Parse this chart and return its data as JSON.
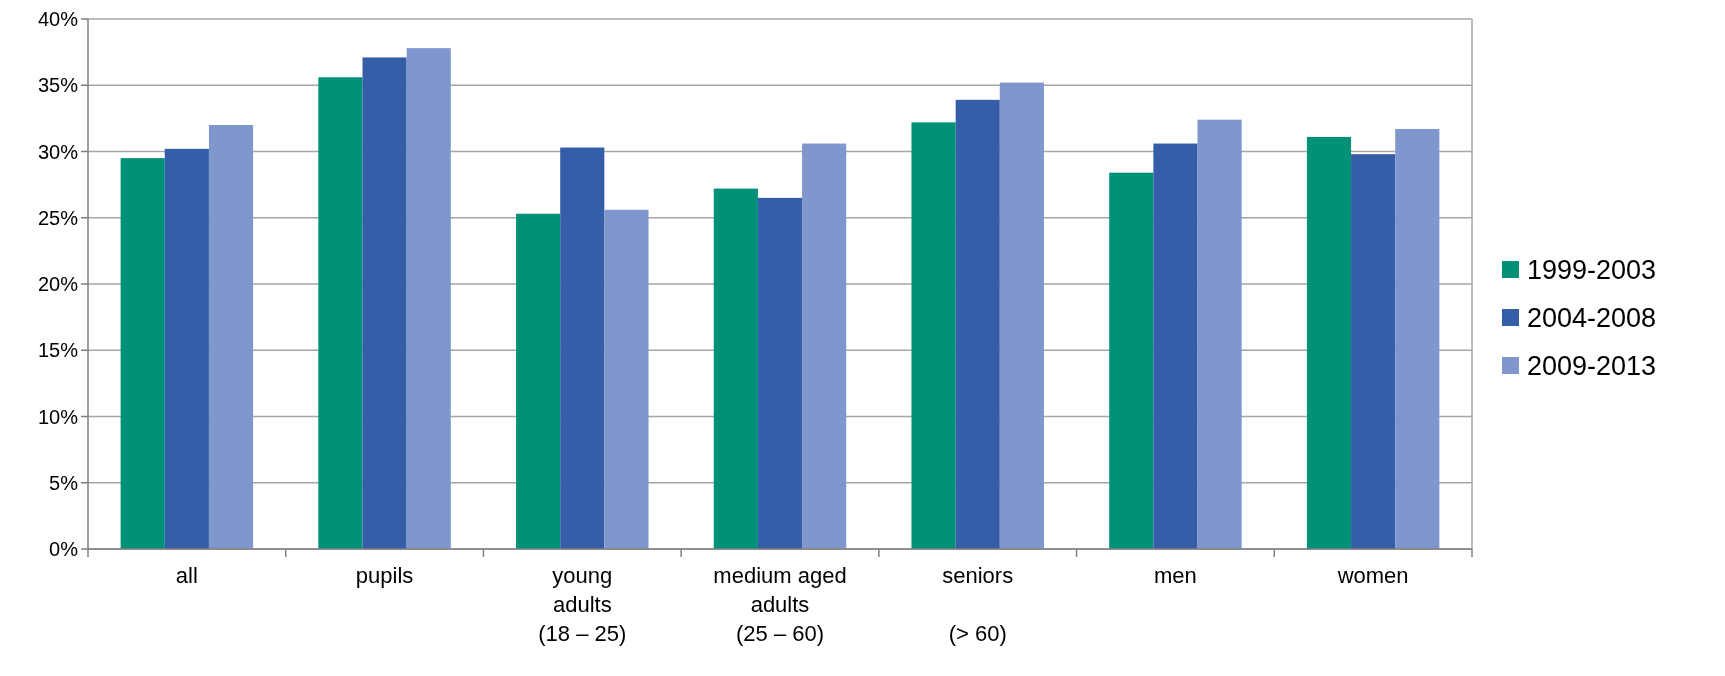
{
  "chart_data": {
    "type": "bar",
    "categories": [
      "all",
      "pupils",
      "young\nadults\n(18 – 25)",
      "medium aged\nadults\n(25 – 60)",
      "seniors\n\n(> 60)",
      "men",
      "women"
    ],
    "series": [
      {
        "name": "1999-2003",
        "color": "#009177",
        "values": [
          29.5,
          35.6,
          25.3,
          27.2,
          32.2,
          28.4,
          31.1
        ]
      },
      {
        "name": "2004-2008",
        "color": "#365ea8",
        "values": [
          30.2,
          37.1,
          30.3,
          26.5,
          33.9,
          30.6,
          29.8
        ]
      },
      {
        "name": "2009-2013",
        "color": "#7f97cd",
        "values": [
          32.0,
          37.8,
          25.6,
          30.6,
          35.2,
          32.4,
          31.7
        ]
      }
    ],
    "ylim": [
      0,
      40
    ],
    "yticks": [
      {
        "value": 0,
        "label": "0%"
      },
      {
        "value": 5,
        "label": "5%"
      },
      {
        "value": 10,
        "label": "10%"
      },
      {
        "value": 15,
        "label": "15%"
      },
      {
        "value": 20,
        "label": "20%"
      },
      {
        "value": 25,
        "label": "25%"
      },
      {
        "value": 30,
        "label": "30%"
      },
      {
        "value": 35,
        "label": "35%"
      },
      {
        "value": 40,
        "label": "40%"
      }
    ],
    "grid": "y",
    "legend": "right"
  }
}
